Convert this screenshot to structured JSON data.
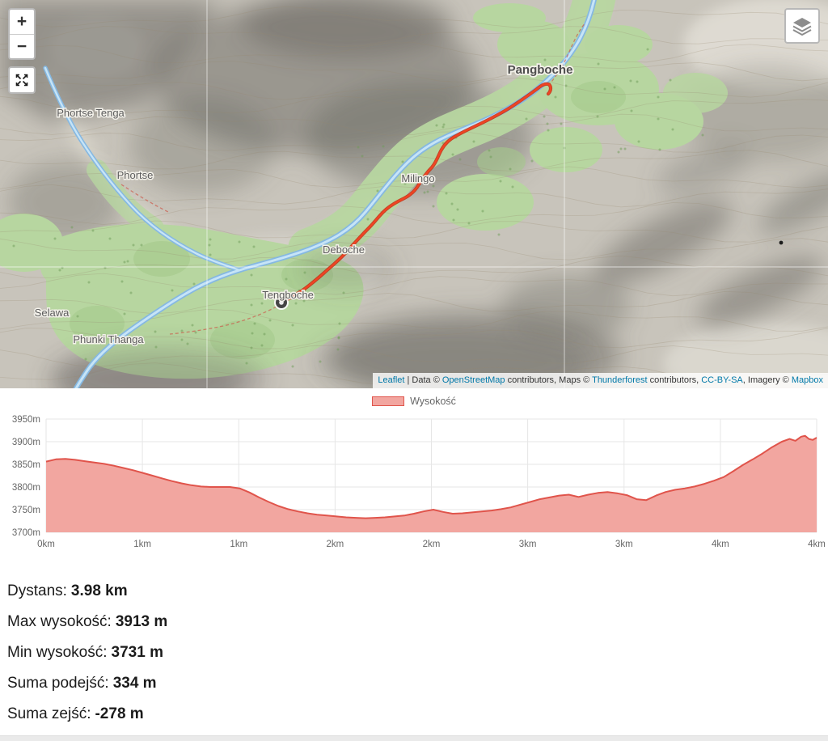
{
  "map": {
    "controls": {
      "zoom_in": "+",
      "zoom_out": "−"
    },
    "places": {
      "phortse_tenga": "Phortse Tenga",
      "phortse": "Phortse",
      "selawa": "Selawa",
      "phunki_thanga": "Phunki Thanga",
      "tengboche": "Tengboche",
      "deboche": "Deboche",
      "milingo": "Milingo",
      "pangboche": "Pangboche"
    },
    "attribution": {
      "leaflet": "Leaflet",
      "data_prefix": " | Data © ",
      "osm": "OpenStreetMap",
      "osm_suffix": " contributors, Maps © ",
      "thunderforest": "Thunderforest",
      "tf_suffix": " contributors, ",
      "license": "CC-BY-SA",
      "imagery_prefix": ", Imagery © ",
      "mapbox": "Mapbox"
    }
  },
  "chart_data": {
    "type": "area",
    "title": "",
    "legend": "Wysokość",
    "xlabel": "",
    "ylabel": "",
    "xlim": [
      0,
      3.98
    ],
    "ylim": [
      3700,
      3950
    ],
    "grid": true,
    "legend_position": "top",
    "fill_color": "#f2a6a0",
    "line_color": "#e0544b",
    "y_ticks": [
      {
        "v": 3950,
        "label": "3950m"
      },
      {
        "v": 3900,
        "label": "3900m"
      },
      {
        "v": 3850,
        "label": "3850m"
      },
      {
        "v": 3800,
        "label": "3800m"
      },
      {
        "v": 3750,
        "label": "3750m"
      },
      {
        "v": 3700,
        "label": "3700m"
      }
    ],
    "x_ticks": [
      "0km",
      "1km",
      "1km",
      "2km",
      "2km",
      "3km",
      "3km",
      "4km",
      "4km"
    ],
    "x": [
      0,
      0.05,
      0.1,
      0.15,
      0.2,
      0.25,
      0.3,
      0.35,
      0.4,
      0.45,
      0.5,
      0.55,
      0.6,
      0.65,
      0.7,
      0.75,
      0.8,
      0.85,
      0.9,
      0.95,
      1.0,
      1.05,
      1.1,
      1.15,
      1.2,
      1.25,
      1.3,
      1.35,
      1.4,
      1.45,
      1.5,
      1.55,
      1.6,
      1.65,
      1.7,
      1.75,
      1.8,
      1.85,
      1.9,
      1.95,
      2.0,
      2.05,
      2.1,
      2.15,
      2.2,
      2.25,
      2.3,
      2.35,
      2.4,
      2.45,
      2.5,
      2.55,
      2.6,
      2.65,
      2.7,
      2.75,
      2.8,
      2.85,
      2.9,
      2.95,
      3.0,
      3.05,
      3.1,
      3.15,
      3.2,
      3.25,
      3.3,
      3.35,
      3.4,
      3.45,
      3.5,
      3.55,
      3.6,
      3.65,
      3.7,
      3.75,
      3.8,
      3.84,
      3.87,
      3.9,
      3.92,
      3.94,
      3.96,
      3.98
    ],
    "y": [
      3856,
      3861,
      3862,
      3860,
      3857,
      3854,
      3851,
      3847,
      3842,
      3837,
      3831,
      3825,
      3819,
      3813,
      3808,
      3804,
      3801,
      3800,
      3800,
      3800,
      3797,
      3788,
      3777,
      3767,
      3758,
      3751,
      3746,
      3742,
      3739,
      3737,
      3735,
      3733,
      3732,
      3731,
      3732,
      3733,
      3735,
      3737,
      3741,
      3746,
      3750,
      3745,
      3741,
      3742,
      3744,
      3746,
      3748,
      3751,
      3755,
      3761,
      3767,
      3773,
      3777,
      3781,
      3783,
      3778,
      3783,
      3787,
      3789,
      3786,
      3782,
      3773,
      3771,
      3781,
      3789,
      3794,
      3797,
      3801,
      3807,
      3814,
      3822,
      3835,
      3849,
      3861,
      3874,
      3888,
      3900,
      3906,
      3902,
      3911,
      3913,
      3906,
      3904,
      3909
    ]
  },
  "stats": [
    {
      "label": "Dystans:",
      "value": "3.98 km"
    },
    {
      "label": "Max wysokość:",
      "value": "3913 m"
    },
    {
      "label": "Min wysokość:",
      "value": "3731 m"
    },
    {
      "label": "Suma podejść:",
      "value": "334 m"
    },
    {
      "label": "Suma zejść:",
      "value": "-278 m"
    }
  ]
}
